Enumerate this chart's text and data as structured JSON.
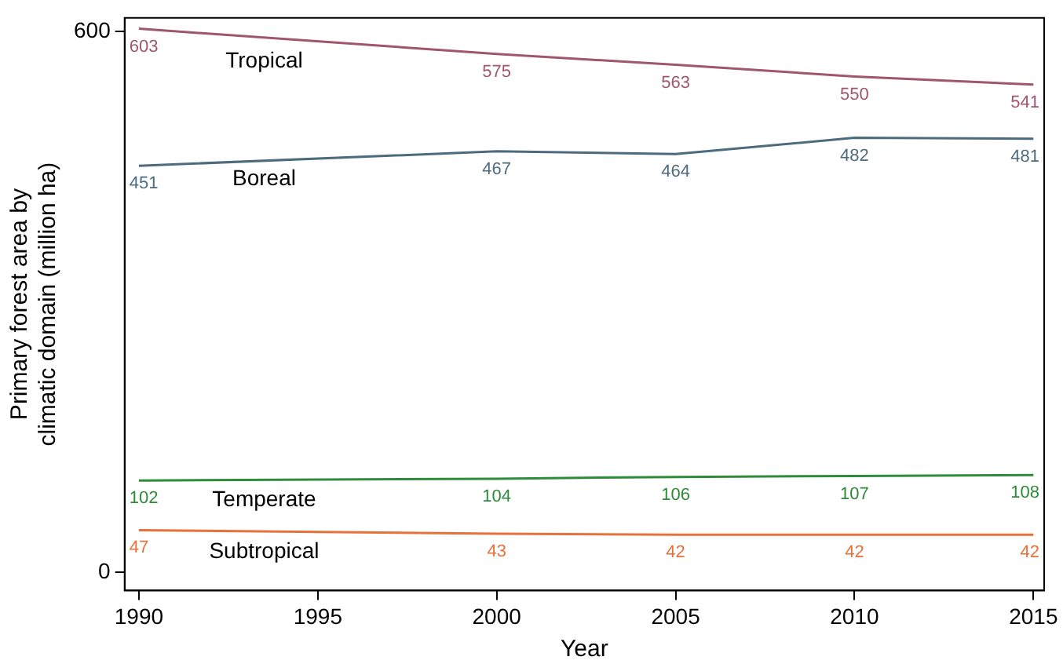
{
  "chart_data": {
    "type": "line",
    "xlabel": "Year",
    "ylabel": "Primary forest area by\nclimatic domain (million ha)",
    "x": [
      1990,
      2000,
      2005,
      2010,
      2015
    ],
    "series": [
      {
        "name": "Tropical",
        "color": "#a0566b",
        "values": [
          603,
          575,
          563,
          550,
          541
        ]
      },
      {
        "name": "Boreal",
        "color": "#4d6b7f",
        "values": [
          451,
          467,
          464,
          482,
          481
        ]
      },
      {
        "name": "Temperate",
        "color": "#2e8b3a",
        "values": [
          102,
          104,
          106,
          107,
          108
        ]
      },
      {
        "name": "Subtropical",
        "color": "#e8703a",
        "values": [
          47,
          43,
          42,
          42,
          42
        ]
      }
    ],
    "xlim": [
      1989.6,
      2015.3
    ],
    "ylim": [
      -20,
      615
    ],
    "xticks": [
      1990,
      1995,
      2000,
      2005,
      2010,
      2015
    ],
    "yticks": [
      0,
      600
    ],
    "data_labels": true,
    "grid": false,
    "legend": false,
    "marker": "none",
    "line_style": "solid"
  }
}
